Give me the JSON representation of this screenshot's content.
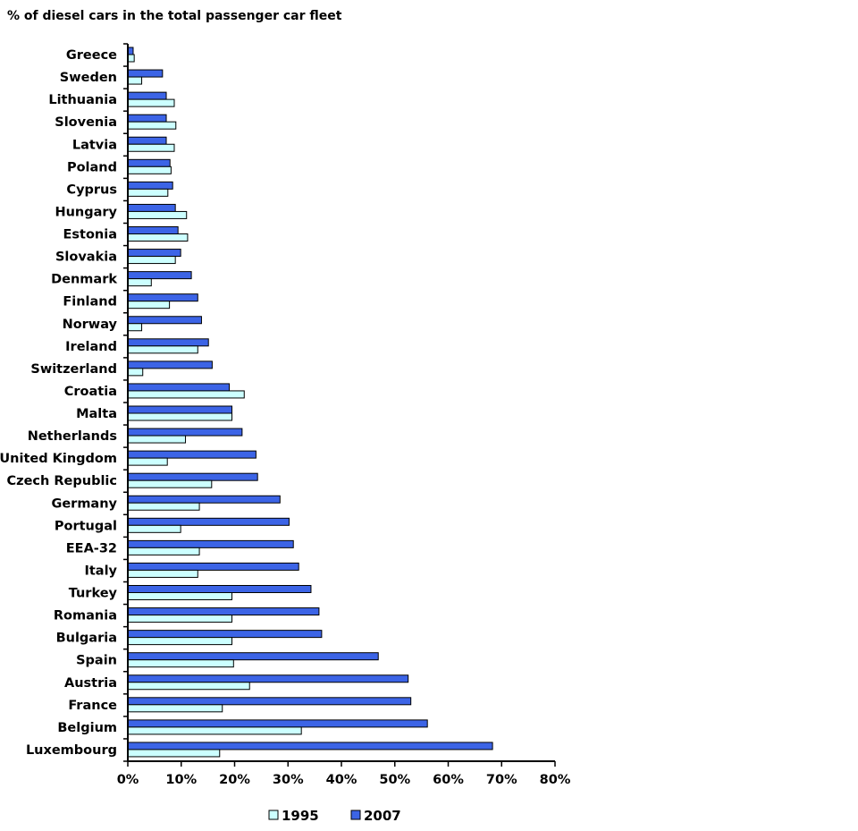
{
  "chart_data": {
    "type": "bar",
    "orientation": "horizontal",
    "title": "% of diesel cars in the total passenger car fleet",
    "categories": [
      "Greece",
      "Sweden",
      "Lithuania",
      "Slovenia",
      "Latvia",
      "Poland",
      "Cyprus",
      "Hungary",
      "Estonia",
      "Slovakia",
      "Denmark",
      "Finland",
      "Norway",
      "Ireland",
      "Switzerland",
      "Croatia",
      "Malta",
      "Netherlands",
      "United Kingdom",
      "Czech Republic",
      "Germany",
      "Portugal",
      "EEA-32",
      "Italy",
      "Turkey",
      "Romania",
      "Bulgaria",
      "Spain",
      "Austria",
      "France",
      "Belgium",
      "Luxembourg"
    ],
    "series": [
      {
        "name": "2007",
        "color": "#3c64e6",
        "values": [
          1.0,
          6.5,
          7.2,
          7.2,
          7.2,
          7.9,
          8.4,
          8.9,
          9.4,
          9.9,
          11.9,
          13.1,
          13.8,
          15.1,
          15.8,
          19.0,
          19.5,
          21.4,
          24.0,
          24.3,
          28.5,
          30.2,
          31.0,
          32.0,
          34.3,
          35.8,
          36.3,
          46.9,
          52.5,
          53.0,
          56.1,
          68.3
        ]
      },
      {
        "name": "1995",
        "color": "#ccffff",
        "values": [
          1.2,
          2.6,
          8.7,
          9.0,
          8.7,
          8.1,
          7.5,
          11.0,
          11.2,
          8.9,
          4.4,
          7.8,
          2.6,
          13.1,
          2.8,
          21.8,
          19.5,
          10.8,
          7.4,
          15.7,
          13.4,
          9.9,
          13.4,
          13.1,
          19.5,
          19.5,
          19.5,
          19.8,
          22.8,
          17.7,
          32.5,
          17.2
        ]
      }
    ],
    "xlim": [
      0,
      80
    ],
    "x_ticks": [
      "0%",
      "10%",
      "20%",
      "30%",
      "40%",
      "50%",
      "60%",
      "70%",
      "80%"
    ],
    "legend": {
      "position": "bottom-center",
      "entries": [
        "1995",
        "2007"
      ]
    },
    "grid": false
  }
}
